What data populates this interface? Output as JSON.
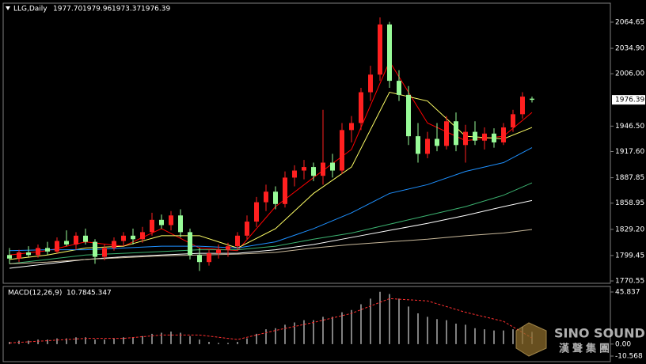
{
  "chart_data": [
    {
      "type": "candlestick",
      "header": {
        "symbol": "LLG,Daily",
        "open": "1977.70",
        "high": "1979.96",
        "low": "1973.37",
        "close": "1976.39"
      },
      "ylim": [
        1767.9,
        2086.2
      ],
      "yticks": [
        2064.65,
        {
          "value": 2034.9,
          "label": "2034.90"
        },
        {
          "value": 2006,
          "label": "2006.00"
        },
        {
          "value": 1946.5,
          "label": "1946.50"
        },
        {
          "value": 1917.6,
          "label": "1917.60"
        },
        1887.85,
        1858.95,
        {
          "value": 1829.2,
          "label": "1829.20"
        },
        1799.45,
        1770.55
      ],
      "last_price": 1976.39,
      "up_color": "#ff2020",
      "down_color": "#98fb98",
      "candles": [
        [
          1800,
          1808,
          1790,
          1796
        ],
        [
          1796,
          1806,
          1792,
          1803
        ],
        [
          1803,
          1810,
          1798,
          1800
        ],
        [
          1800,
          1812,
          1797,
          1808
        ],
        [
          1808,
          1815,
          1800,
          1804
        ],
        [
          1804,
          1820,
          1802,
          1816
        ],
        [
          1816,
          1828,
          1810,
          1812
        ],
        [
          1812,
          1826,
          1806,
          1822
        ],
        [
          1822,
          1830,
          1812,
          1815
        ],
        [
          1815,
          1818,
          1790,
          1798
        ],
        [
          1798,
          1812,
          1794,
          1808
        ],
        [
          1808,
          1820,
          1805,
          1816
        ],
        [
          1816,
          1826,
          1810,
          1822
        ],
        [
          1822,
          1830,
          1812,
          1818
        ],
        [
          1818,
          1832,
          1814,
          1826
        ],
        [
          1826,
          1848,
          1822,
          1840
        ],
        [
          1840,
          1846,
          1830,
          1834
        ],
        [
          1834,
          1850,
          1828,
          1845
        ],
        [
          1845,
          1852,
          1820,
          1826
        ],
        [
          1826,
          1830,
          1795,
          1800
        ],
        [
          1800,
          1808,
          1782,
          1792
        ],
        [
          1792,
          1806,
          1788,
          1802
        ],
        [
          1802,
          1812,
          1796,
          1806
        ],
        [
          1806,
          1814,
          1798,
          1810
        ],
        [
          1810,
          1826,
          1806,
          1822
        ],
        [
          1822,
          1845,
          1818,
          1838
        ],
        [
          1838,
          1866,
          1832,
          1860
        ],
        [
          1860,
          1880,
          1850,
          1872
        ],
        [
          1872,
          1878,
          1852,
          1858
        ],
        [
          1858,
          1895,
          1854,
          1888
        ],
        [
          1888,
          1902,
          1878,
          1896
        ],
        [
          1896,
          1908,
          1886,
          1900
        ],
        [
          1900,
          1905,
          1884,
          1890
        ],
        [
          1890,
          1965,
          1880,
          1905
        ],
        [
          1905,
          1915,
          1888,
          1896
        ],
        [
          1896,
          1950,
          1892,
          1942
        ],
        [
          1942,
          1958,
          1928,
          1950
        ],
        [
          1950,
          1990,
          1942,
          1985
        ],
        [
          1985,
          2015,
          1975,
          2005
        ],
        [
          2005,
          2070,
          1998,
          2062
        ],
        [
          2062,
          2065,
          1990,
          1998
        ],
        [
          1998,
          2010,
          1975,
          1982
        ],
        [
          1982,
          1992,
          1925,
          1935
        ],
        [
          1935,
          1950,
          1905,
          1915
        ],
        [
          1915,
          1940,
          1910,
          1932
        ],
        [
          1932,
          1950,
          1918,
          1924
        ],
        [
          1924,
          1958,
          1920,
          1952
        ],
        [
          1952,
          1962,
          1918,
          1925
        ],
        [
          1925,
          1948,
          1905,
          1940
        ],
        [
          1940,
          1952,
          1925,
          1930
        ],
        [
          1930,
          1945,
          1920,
          1938
        ],
        [
          1938,
          1944,
          1922,
          1928
        ],
        [
          1928,
          1950,
          1925,
          1945
        ],
        [
          1945,
          1965,
          1940,
          1960
        ],
        [
          1960,
          1985,
          1955,
          1980
        ],
        [
          1977.7,
          1979.96,
          1973.37,
          1976.39
        ]
      ],
      "ma": {
        "x": [
          0,
          4,
          8,
          12,
          16,
          20,
          24,
          28,
          32,
          36,
          40,
          44,
          48,
          52,
          55
        ],
        "series": [
          {
            "color": "#ff0000",
            "values": [
              1800,
              1805,
              1815,
              1810,
              1830,
              1808,
              1805,
              1855,
              1888,
              1920,
              2020,
              1950,
              1930,
              1935,
              1962
            ]
          },
          {
            "color": "#ffff66",
            "values": [
              1795,
              1800,
              1808,
              1810,
              1822,
              1822,
              1808,
              1830,
              1870,
              1900,
              1985,
              1975,
              1935,
              1932,
              1945
            ]
          },
          {
            "color": "#1e90ff",
            "values": [
              1805,
              1806,
              1806,
              1808,
              1810,
              1810,
              1808,
              1815,
              1830,
              1848,
              1870,
              1880,
              1895,
              1905,
              1922
            ]
          },
          {
            "color": "#3cb371",
            "values": [
              1790,
              1795,
              1800,
              1802,
              1804,
              1806,
              1806,
              1810,
              1818,
              1825,
              1835,
              1845,
              1855,
              1868,
              1882
            ]
          },
          {
            "color": "#ffffff",
            "values": [
              1785,
              1790,
              1795,
              1798,
              1800,
              1802,
              1802,
              1806,
              1812,
              1820,
              1828,
              1836,
              1845,
              1855,
              1862
            ]
          },
          {
            "color": "#c8b89a",
            "values": [
              1790,
              1792,
              1795,
              1797,
              1799,
              1800,
              1801,
              1803,
              1808,
              1812,
              1815,
              1818,
              1822,
              1825,
              1829
            ]
          }
        ]
      }
    },
    {
      "type": "macd",
      "label": "MACD(12,26,9)",
      "ylim": [
        -10.568,
        45.837
      ],
      "yticks": [
        45.837,
        {
          "value": 0,
          "label": "0.00"
        },
        -10.568
      ],
      "bar_color": "#ffffff",
      "histogram": [
        2,
        3,
        3,
        4,
        4,
        5,
        5,
        6,
        6,
        4,
        4,
        5,
        6,
        6,
        7,
        9,
        10,
        11,
        10,
        7,
        4,
        2,
        1,
        1,
        2,
        5,
        9,
        13,
        14,
        17,
        19,
        21,
        21,
        24,
        24,
        28,
        30,
        35,
        40,
        46,
        44,
        40,
        33,
        27,
        24,
        22,
        21,
        18,
        17,
        14,
        13,
        12,
        12,
        13,
        15,
        10.784
      ],
      "signal": {
        "color": "#ff3030",
        "x": [
          0,
          4,
          8,
          12,
          16,
          20,
          24,
          28,
          32,
          36,
          40,
          44,
          48,
          52,
          55
        ],
        "values": [
          1,
          3,
          5,
          5,
          8,
          8,
          4,
          12,
          19,
          27,
          40,
          38,
          28,
          20,
          5.347
        ]
      }
    }
  ],
  "watermark": {
    "brand": "SINO SOUND",
    "chinese": "漢聲集團"
  }
}
